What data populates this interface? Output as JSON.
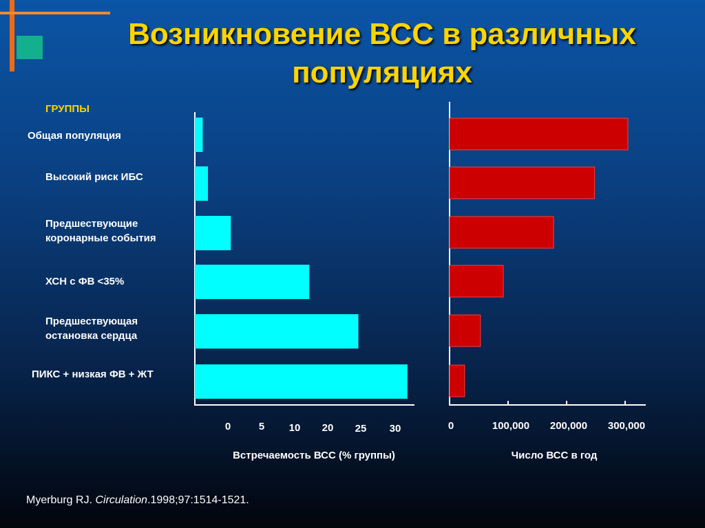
{
  "title": "Возникновение ВСС в различных популяциях",
  "groups_heading": "ГРУППЫ",
  "citation": {
    "author": "Myerburg RJ. ",
    "journal": "Circulation",
    "details": ".1998;97:1514-1521."
  },
  "colors": {
    "title": "#ffd400",
    "left_bars": "#00ffff",
    "right_bars": "#cc0000",
    "accent_orange": "#f26a10",
    "accent_teal": "#12b08c"
  },
  "chart_data": [
    {
      "type": "bar",
      "orientation": "horizontal",
      "categories": [
        "Общая популяция",
        "Высокий риск ИБС",
        "Предшествующие коронарные события",
        "ХСН с ФВ <35%",
        "Предшествующая остановка сердца",
        "ПИКС + низкая ФВ + ЖТ"
      ],
      "values": [
        1.2,
        2.0,
        5.5,
        17.5,
        25.0,
        32.5
      ],
      "xlabel": "Встречаемость ВСС (% группы)",
      "tick_labels": [
        "0",
        "5",
        "10",
        "20",
        "25",
        "30"
      ],
      "grid": false
    },
    {
      "type": "bar",
      "orientation": "horizontal",
      "categories": [
        "Общая популяция",
        "Высокий риск ИБС",
        "Предшествующие коронарные события",
        "ХСН с ФВ <35%",
        "Предшествующая остановка сердца",
        "ПИКС + низкая ФВ + ЖТ"
      ],
      "values": [
        300000,
        243000,
        173000,
        87000,
        48000,
        21000
      ],
      "xlabel": "Число ВСС в год",
      "tick_labels": [
        "0",
        "100,000",
        "200,000",
        "300,000"
      ],
      "xlim": [
        0,
        300000
      ],
      "grid": false
    }
  ]
}
